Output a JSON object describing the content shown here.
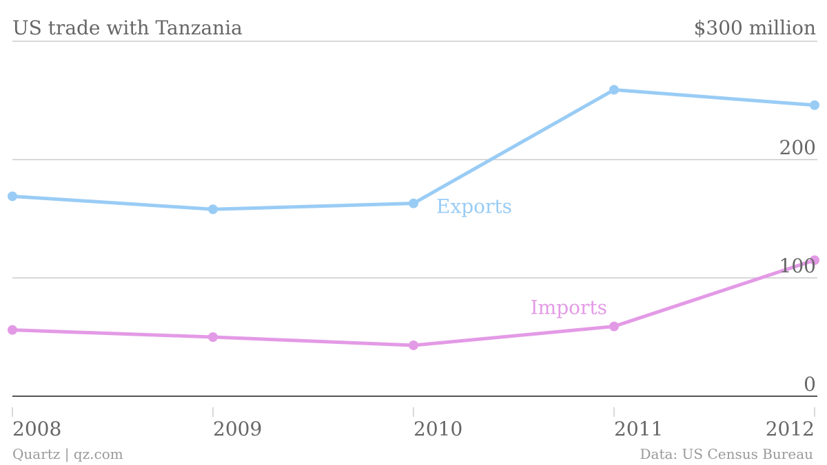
{
  "colors": {
    "exports": "#99ccf5",
    "imports": "#e39ae6",
    "grid": "#cccccc",
    "baseline": "#555555",
    "text": "#666666",
    "footer": "#999999"
  },
  "chart_data": {
    "type": "line",
    "title": "US trade with Tanzania",
    "unit_label": "$300 million",
    "categories": [
      "2008",
      "2009",
      "2010",
      "2011",
      "2012"
    ],
    "y_ticks": [
      "0",
      "100",
      "200"
    ],
    "ylim": [
      0,
      300
    ],
    "grid": true,
    "series": [
      {
        "name": "Exports",
        "values": [
          169,
          158,
          163,
          259,
          246
        ]
      },
      {
        "name": "Imports",
        "values": [
          56,
          50,
          43,
          59,
          115
        ]
      }
    ]
  },
  "footer": {
    "source": "Quartz | qz.com",
    "credit": "Data: US Census Bureau"
  }
}
